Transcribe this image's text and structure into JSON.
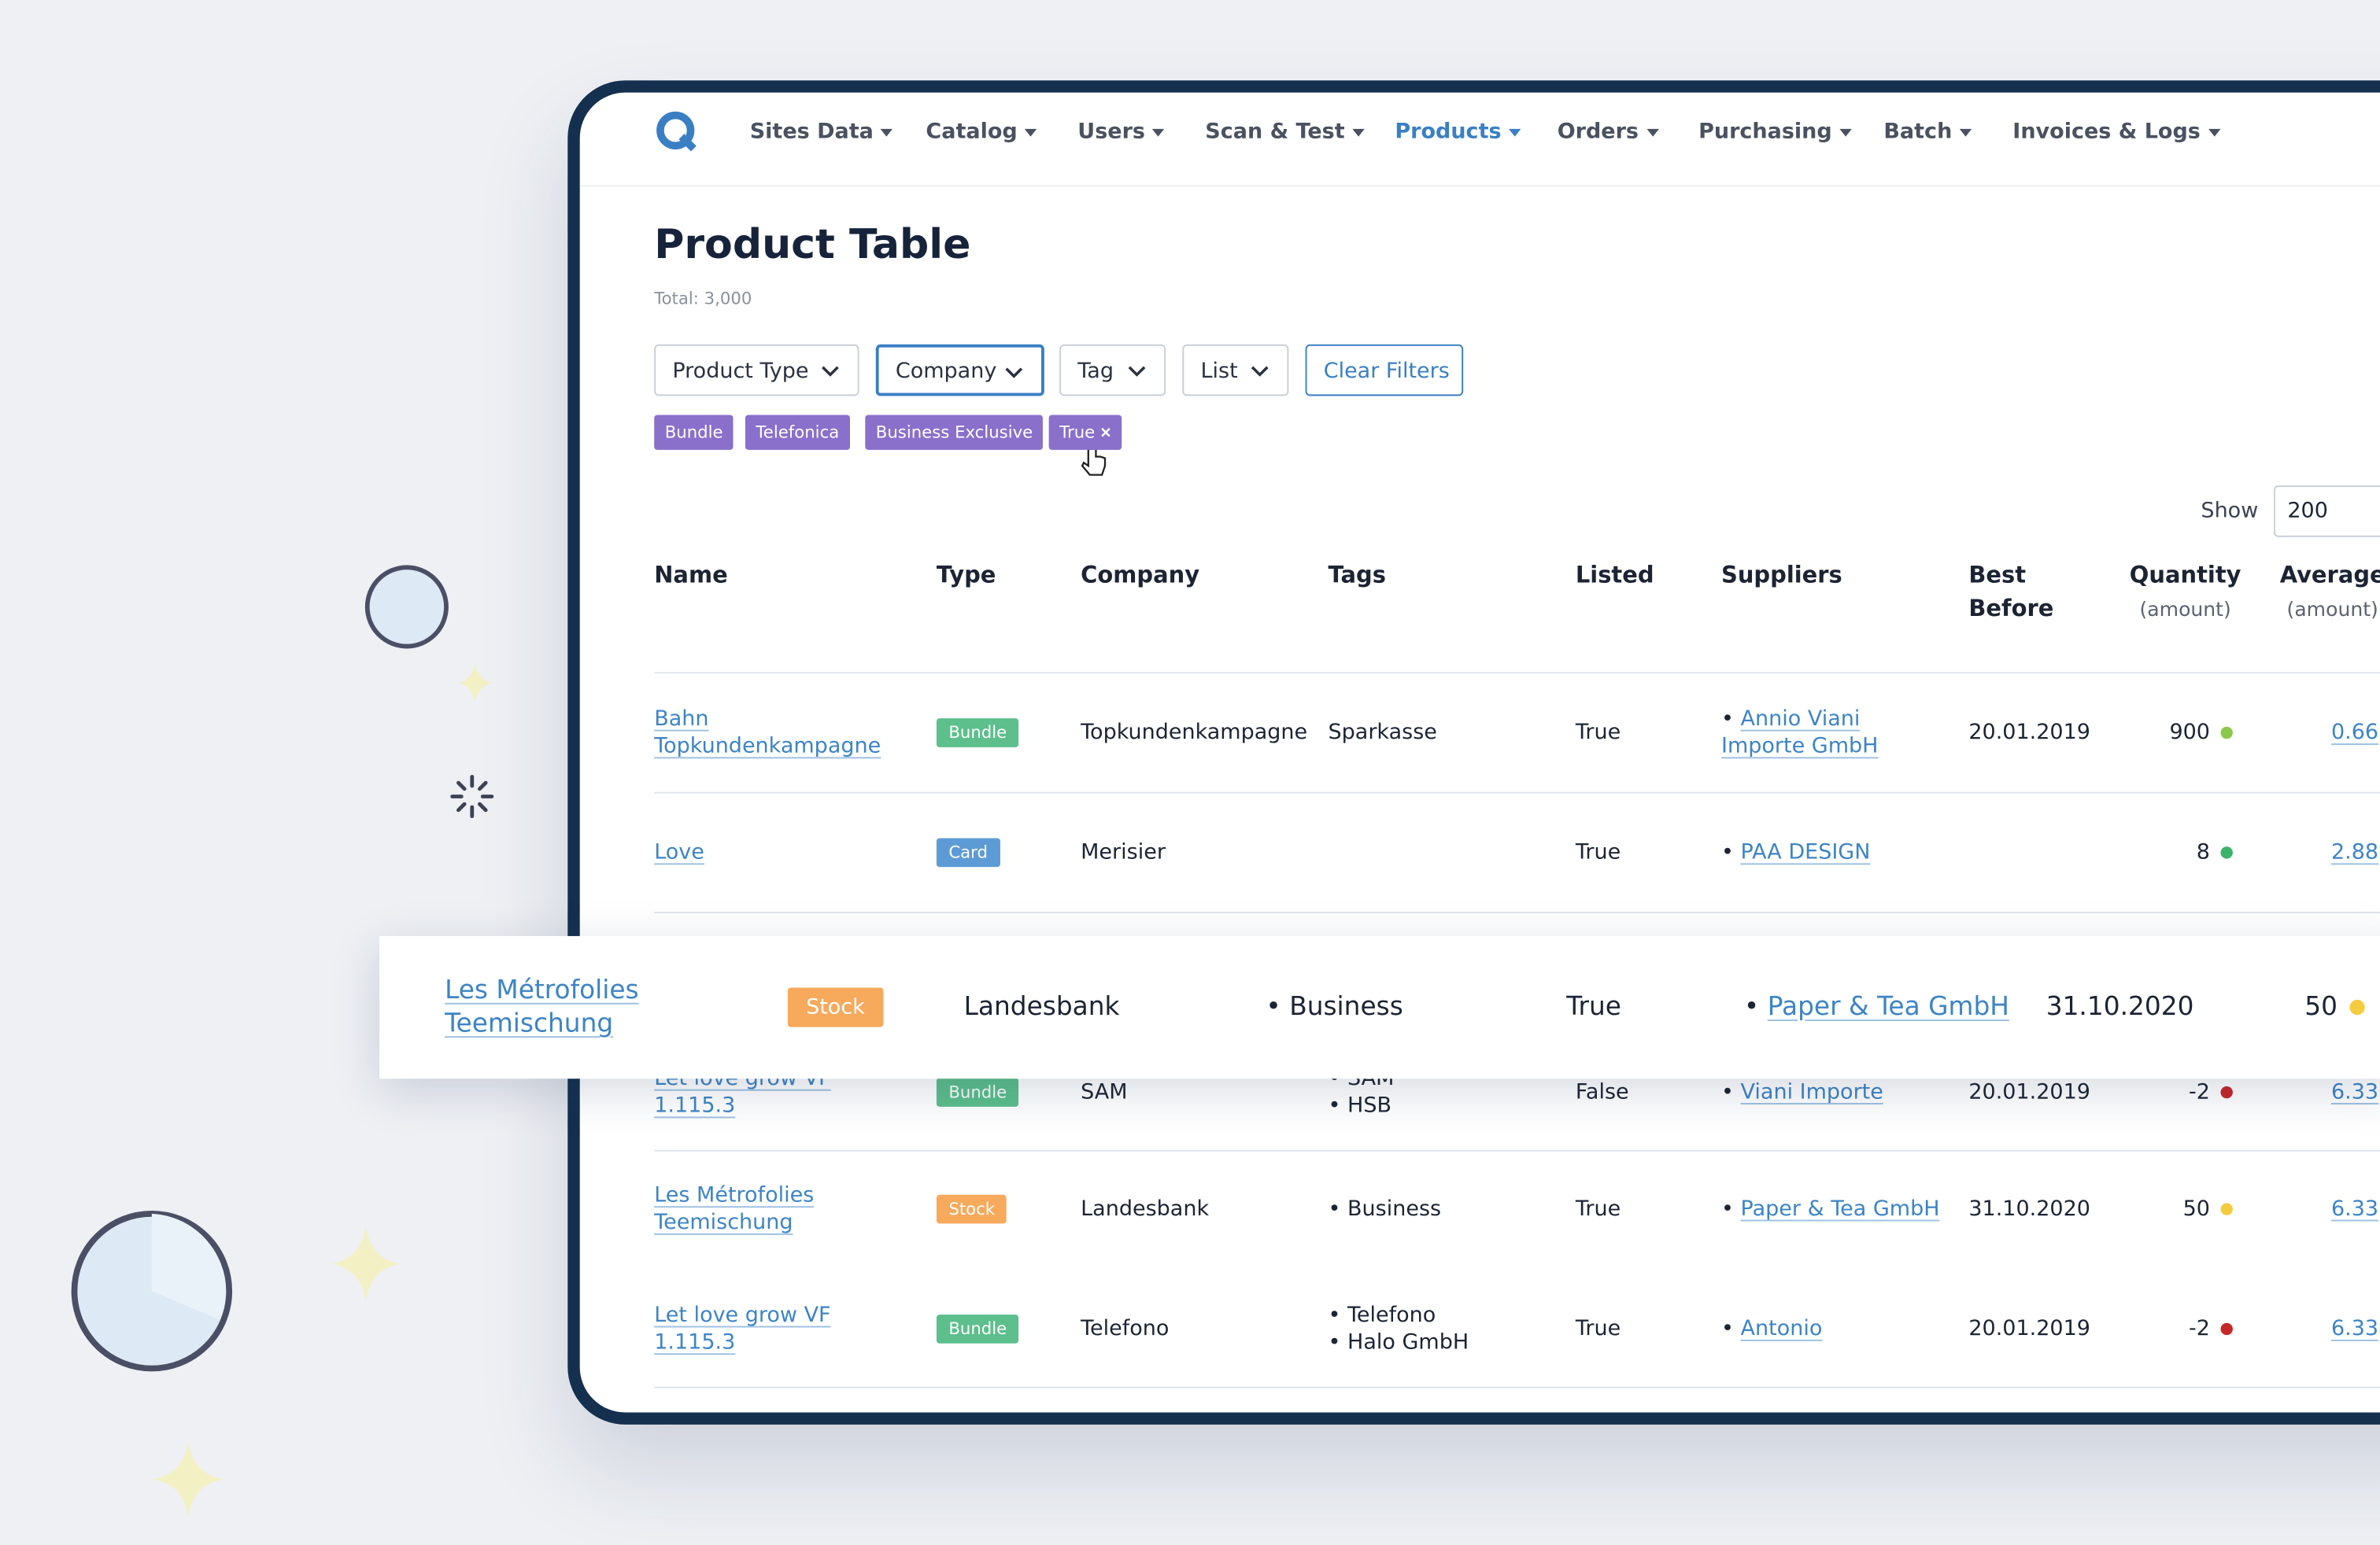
{
  "nav": {
    "items": [
      "Sites Data",
      "Catalog",
      "Users",
      "Scan & Test",
      "Products",
      "Orders",
      "Purchasing",
      "Batch",
      "Invoices & Logs"
    ],
    "active": 4
  },
  "header": {
    "title": "Product Table",
    "total": "Total: 3,000"
  },
  "filters": [
    "Product Type",
    "Company",
    "Tag",
    "List"
  ],
  "clear": "Clear Filters",
  "chips": [
    "Bundle",
    "Telefonica",
    "Business Exclusive",
    "True"
  ],
  "show": {
    "label": "Show",
    "value": "200"
  },
  "table": {
    "headers": [
      {
        "label": "Name"
      },
      {
        "label": "Type"
      },
      {
        "label": "Company"
      },
      {
        "label": "Tags"
      },
      {
        "label": "Listed"
      },
      {
        "label": "Suppliers"
      },
      {
        "label": "Best Before"
      },
      {
        "label": "Quantity",
        "sub": "(amount)"
      },
      {
        "label": "Average",
        "sub": "(amount)"
      }
    ],
    "rows": [
      {
        "name": "Bahn Topkundenkampagne",
        "type": "Bundle",
        "type_color": "#5cbf8c",
        "company": "Topkundenkampagne",
        "tags": "Sparkasse",
        "listed": "True",
        "suppliers": [
          "Annio Viani Importe GmbH"
        ],
        "best_before": "20.01.2019",
        "quantity": "900",
        "dot": "#8cc84b",
        "average": "0.66"
      },
      {
        "name": "Love",
        "type": "Card",
        "type_color": "#5d9bd6",
        "company": "Merisier",
        "tags": [],
        "listed": "True",
        "suppliers": [
          "PAA DESIGN"
        ],
        "best_before": null,
        "quantity": "8",
        "dot": "#3bb36b",
        "average": "2.88"
      },
      {
        "name": "Let love grow VF 1.115.3",
        "type": "Bundle",
        "type_color": "#5cbf8c",
        "company": "SAM",
        "tags": [
          "SAM",
          "HSB"
        ],
        "listed": "False",
        "suppliers": [
          "Viani Importe"
        ],
        "best_before": "20.01.2019",
        "quantity": "-2",
        "dot": "#c62828",
        "average": "6.33"
      },
      {
        "name": "Les Métrofolies Teemischung",
        "type": "Stock",
        "type_color": "#f7a95c",
        "company": "Landesbank",
        "tags": [
          "Business"
        ],
        "listed": "True",
        "suppliers": [
          "Paper & Tea GmbH"
        ],
        "best_before": "31.10.2020",
        "quantity": "50",
        "dot": "#f5cc3f",
        "average": "6.33"
      },
      {
        "name": "Let love grow VF 1.115.3",
        "type": "Bundle",
        "type_color": "#5cbf8c",
        "company": "Telefono",
        "tags": [
          "Telefono",
          "Halo GmbH"
        ],
        "listed": "True",
        "suppliers": [
          "Antonio"
        ],
        "best_before": "20.01.2019",
        "quantity": "-2",
        "dot": "#c62828",
        "average": "6.33"
      }
    ]
  },
  "floating_row": {
    "name": "Les Métrofolies Teemischung",
    "type": "Stock",
    "type_color": "#f7a95c",
    "company": "Landesbank",
    "tags": [
      "Business"
    ],
    "listed": "True",
    "suppliers": [
      "Paper & Tea GmbH"
    ],
    "best_before": "31.10.2020",
    "quantity": "50",
    "dot": "#f5cc3f"
  }
}
